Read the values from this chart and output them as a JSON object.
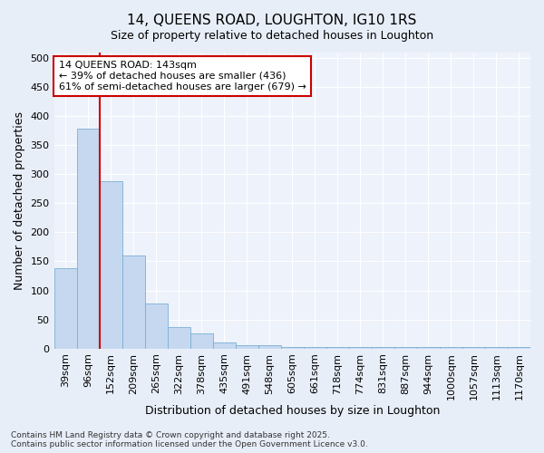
{
  "title": "14, QUEENS ROAD, LOUGHTON, IG10 1RS",
  "subtitle": "Size of property relative to detached houses in Loughton",
  "xlabel": "Distribution of detached houses by size in Loughton",
  "ylabel": "Number of detached properties",
  "bar_color": "#c5d8f0",
  "bar_edge_color": "#7bafd4",
  "background_color": "#e8eef8",
  "plot_bg_color": "#eef2fb",
  "grid_color": "#ffffff",
  "vline_color": "#cc0000",
  "vline_x_index": 2,
  "categories": [
    "39sqm",
    "96sqm",
    "152sqm",
    "209sqm",
    "265sqm",
    "322sqm",
    "378sqm",
    "435sqm",
    "491sqm",
    "548sqm",
    "605sqm",
    "661sqm",
    "718sqm",
    "774sqm",
    "831sqm",
    "887sqm",
    "944sqm",
    "1000sqm",
    "1057sqm",
    "1113sqm",
    "1170sqm"
  ],
  "values": [
    138,
    378,
    288,
    160,
    78,
    37,
    26,
    11,
    6,
    6,
    2,
    2,
    2,
    2,
    2,
    2,
    2,
    2,
    2,
    2,
    2
  ],
  "ylim": [
    0,
    510
  ],
  "yticks": [
    0,
    50,
    100,
    150,
    200,
    250,
    300,
    350,
    400,
    450,
    500
  ],
  "annotation_text": "14 QUEENS ROAD: 143sqm\n← 39% of detached houses are smaller (436)\n61% of semi-detached houses are larger (679) →",
  "footnote": "Contains HM Land Registry data © Crown copyright and database right 2025.\nContains public sector information licensed under the Open Government Licence v3.0.",
  "title_fontsize": 11,
  "subtitle_fontsize": 9,
  "axis_label_fontsize": 9,
  "tick_fontsize": 8,
  "annot_fontsize": 8
}
